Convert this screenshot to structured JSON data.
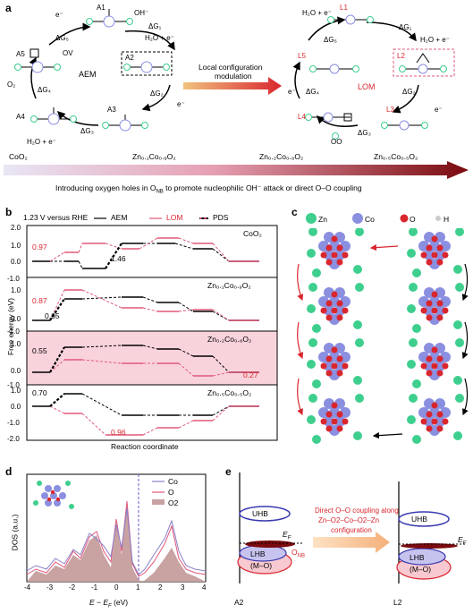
{
  "panel_a": {
    "label": "a",
    "aem_title": "AEM",
    "lom_title": "LOM",
    "arrow_text_line1": "Local configuration",
    "arrow_text_line2": "modulation",
    "aem_states": [
      "A1",
      "A2",
      "A3",
      "A4",
      "A5"
    ],
    "lom_states": [
      "L1",
      "L2",
      "L3",
      "L4",
      "L5"
    ],
    "compositions": [
      "CoO₂",
      "Zn₀.₁Co₀.₉O₂",
      "Zn₀.₂Co₀.₈O₂",
      "Zn₀.₅Co₀.₅O₂"
    ],
    "gradient_caption": "Introducing oxygen holes in Oₙʙ to promote nucleophilic OH⁻ attack or direct O–O coupling",
    "gradient_caption_parts": {
      "pre": "Introducing oxygen holes in O",
      "sub": "NB",
      "post": " to promote nucleophilic OH⁻ attack or direct O–O coupling"
    },
    "labels": {
      "oh": "OH⁻",
      "e": "e⁻",
      "h2o_e": "H₂O + e⁻",
      "ov": "OV",
      "o2": "O₂",
      "co4": "Co⁴⁺",
      "co3": "Co³⁺",
      "oo": "OO"
    },
    "dg_labels": [
      "ΔG₁",
      "ΔG₂",
      "ΔG₃",
      "ΔG₄",
      "ΔG₅"
    ]
  },
  "panel_b": {
    "label": "b",
    "legend": {
      "potential": "1.23 V versus RHE",
      "aem": "AEM",
      "lom": "LOM",
      "pds": "PDS"
    },
    "ylabel": "Free energy (eV)",
    "xlabel": "Reaction coordinate",
    "rows": [
      {
        "name": "CoO₂",
        "aem_pds": "1.46",
        "lom_pds": "0.97",
        "ticks": [
          "2.0",
          "1.0",
          "0.0"
        ]
      },
      {
        "name": "Zn₀.₁Co₀.₉O₂",
        "aem_pds": "0.65",
        "lom_pds": "0.87",
        "ticks": [
          "-1.0",
          "1.0",
          "0.0"
        ]
      },
      {
        "name": "Zn₀.₂Co₀.₈O₂",
        "aem_pds": "0.55",
        "lom_pds": "0.27",
        "ticks": [
          "-1.0",
          "1.0",
          "0.0"
        ]
      },
      {
        "name": "Zn₀.₅Co₀.₅O₂",
        "aem_pds": "0.70",
        "lom_pds": "0.96",
        "ticks": [
          "-1.0",
          "1.0",
          "0.0",
          "-1.0",
          "-2.0"
        ]
      }
    ],
    "colors": {
      "aem": "#000000",
      "lom": "#e0587a",
      "highlight": "#f9d3dc"
    }
  },
  "panel_c": {
    "label": "c",
    "legend": [
      {
        "symbol": "Zn",
        "color": "#3ecf8e"
      },
      {
        "symbol": "Co",
        "color": "#8b8fe0"
      },
      {
        "symbol": "O",
        "color": "#d9262e"
      },
      {
        "symbol": "H",
        "color": "#cccccc"
      }
    ]
  },
  "panel_d": {
    "label": "d",
    "ylabel": "DOS (a.u.)",
    "xlabel": "E − E",
    "xlabel_sub": "F",
    "xlabel_unit": " (eV)",
    "xticks": [
      "-4",
      "-3",
      "-2",
      "-1",
      "0",
      "1",
      "2",
      "3",
      "4"
    ],
    "legend": [
      {
        "name": "Co",
        "color": "#8a80c8"
      },
      {
        "name": "O",
        "color": "#e0587a"
      },
      {
        "name": "O2",
        "color": "#c9a2a2"
      }
    ]
  },
  "panel_e": {
    "label": "e",
    "left": {
      "uhb": "UHB",
      "lhb": "LHB",
      "mo": "(M–O)",
      "ef": "E",
      "ef_sub": "F",
      "onb": "O",
      "onb_sub": "NB",
      "name": "A2"
    },
    "right": {
      "uhb": "UHB",
      "lhb": "LHB",
      "mo": "(M–O)",
      "ef": "E",
      "ef_sub": "F",
      "name": "L2"
    },
    "arrow_text": [
      "Direct O–O coupling along",
      "Zn–O2–Co–O2–Zn",
      "configuration"
    ]
  }
}
